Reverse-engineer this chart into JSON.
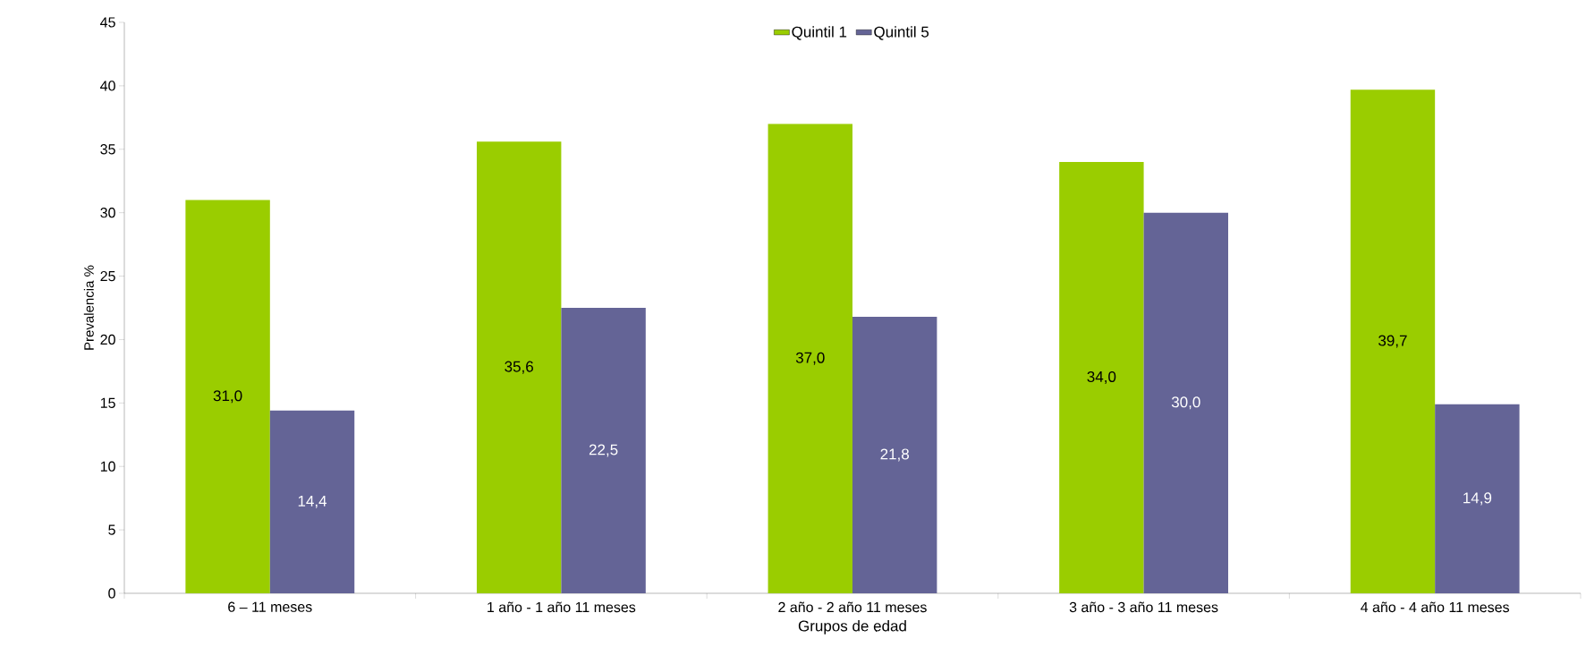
{
  "chart_data": {
    "type": "bar",
    "xlabel": "Grupos de edad",
    "ylabel": "Prevalencia %",
    "categories": [
      "6 – 11 meses",
      "1 año  - 1 año 11 meses",
      "2 año  - 2 año 11 meses",
      "3 año  - 3 año 11 meses",
      "4 año  - 4 año 11 meses"
    ],
    "series": [
      {
        "name": "Quintil 1",
        "color": "#9acd00",
        "values": [
          31.0,
          35.6,
          37.0,
          34.0,
          39.7
        ],
        "value_labels": [
          "31,0",
          "35,6",
          "37,0",
          "34,0",
          "39,7"
        ]
      },
      {
        "name": "Quintil 5",
        "color": "#646496",
        "values": [
          14.4,
          22.5,
          21.8,
          30.0,
          14.9
        ],
        "value_labels": [
          "14,4",
          "22,5",
          "21,8",
          "30,0",
          "14,9"
        ]
      }
    ],
    "ylim": [
      0,
      45
    ],
    "yticks": [
      0,
      5,
      10,
      15,
      20,
      25,
      30,
      35,
      40,
      45
    ],
    "grid": false,
    "legend": "top"
  }
}
